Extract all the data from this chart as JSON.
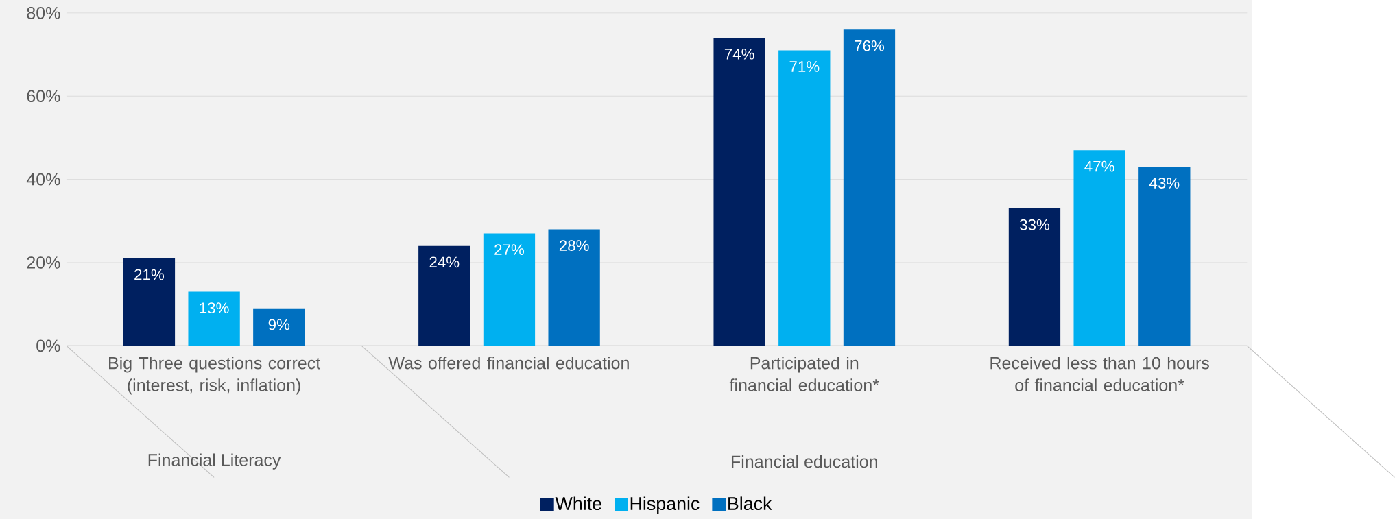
{
  "chart_data": {
    "type": "bar",
    "categories": [
      "Big Three questions correct (interest, risk, inflation)",
      "Was offered financial education",
      "Participated in financial education*",
      "Received less than 10 hours of financial education*"
    ],
    "series": [
      {
        "name": "White",
        "color": "#002060",
        "values": [
          21,
          24,
          74,
          33
        ],
        "value_labels": [
          "21%",
          "24%",
          "74%",
          "33%"
        ]
      },
      {
        "name": "Hispanic",
        "color": "#00b0f0",
        "values": [
          13,
          27,
          71,
          47
        ],
        "value_labels": [
          "13%",
          "27%",
          "71%",
          "47%"
        ]
      },
      {
        "name": "Black",
        "color": "#0070c0",
        "values": [
          9,
          28,
          76,
          43
        ],
        "value_labels": [
          "9%",
          "28%",
          "76%",
          "43%"
        ]
      }
    ],
    "ylim": [
      0,
      80
    ],
    "yticks": [
      {
        "value": 0,
        "label": "0%"
      },
      {
        "value": 20,
        "label": "20%"
      },
      {
        "value": 40,
        "label": "40%"
      },
      {
        "value": 60,
        "label": "60%"
      },
      {
        "value": 80,
        "label": "80%"
      }
    ],
    "grid": "y",
    "legend": "bottom",
    "annotations": [
      "Financial Literacy",
      "Financial education"
    ]
  }
}
